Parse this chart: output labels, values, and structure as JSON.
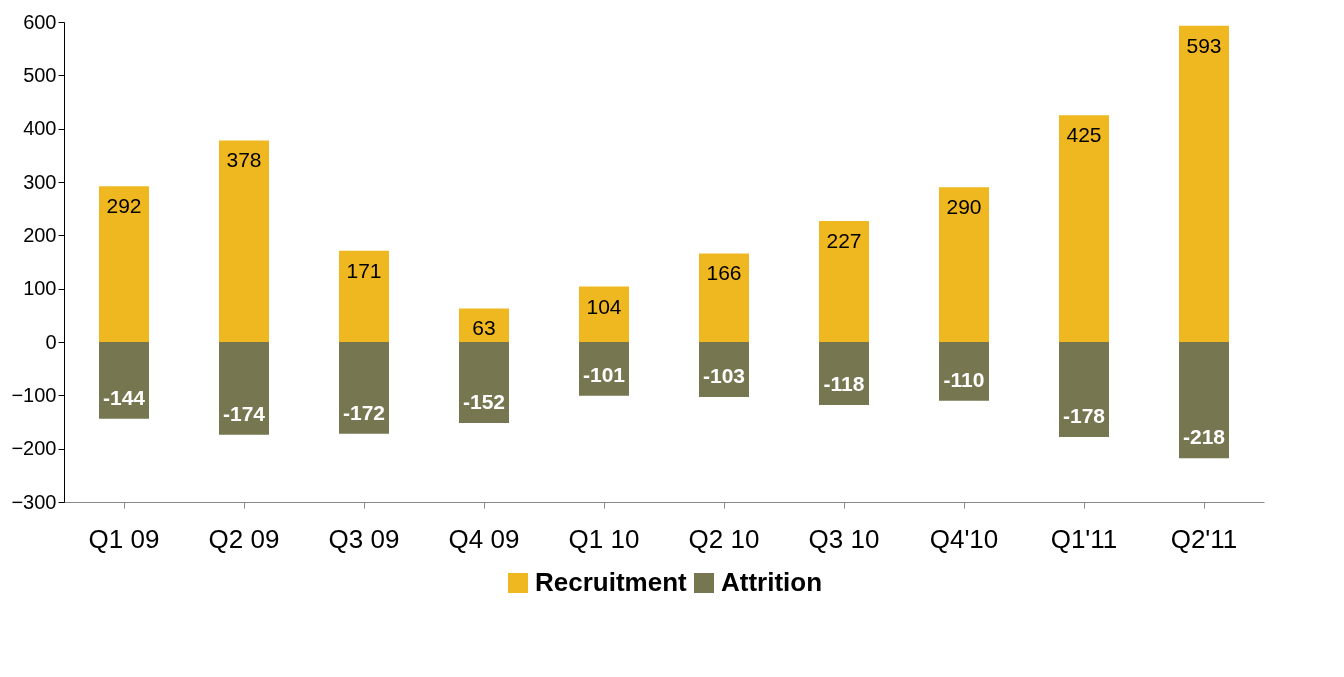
{
  "chart_data": {
    "type": "bar",
    "stacked": true,
    "categories": [
      "Q1 09",
      "Q2 09",
      "Q3 09",
      "Q4 09",
      "Q1 10",
      "Q2 10",
      "Q3 10",
      "Q4'10",
      "Q1'11",
      "Q2'11"
    ],
    "series": [
      {
        "name": "Recruitment",
        "color": "#f0b820",
        "values": [
          292,
          378,
          171,
          63,
          104,
          166,
          227,
          290,
          425,
          593
        ]
      },
      {
        "name": "Attrition",
        "color": "#767650",
        "values": [
          -144,
          -174,
          -172,
          -152,
          -101,
          -103,
          -118,
          -110,
          -178,
          -218
        ]
      }
    ],
    "ylim": [
      -300,
      600
    ],
    "yticks": [
      -300,
      -200,
      -100,
      0,
      100,
      200,
      300,
      400,
      500,
      600
    ],
    "data_labels": true,
    "legend": "bottom",
    "grid": false
  }
}
